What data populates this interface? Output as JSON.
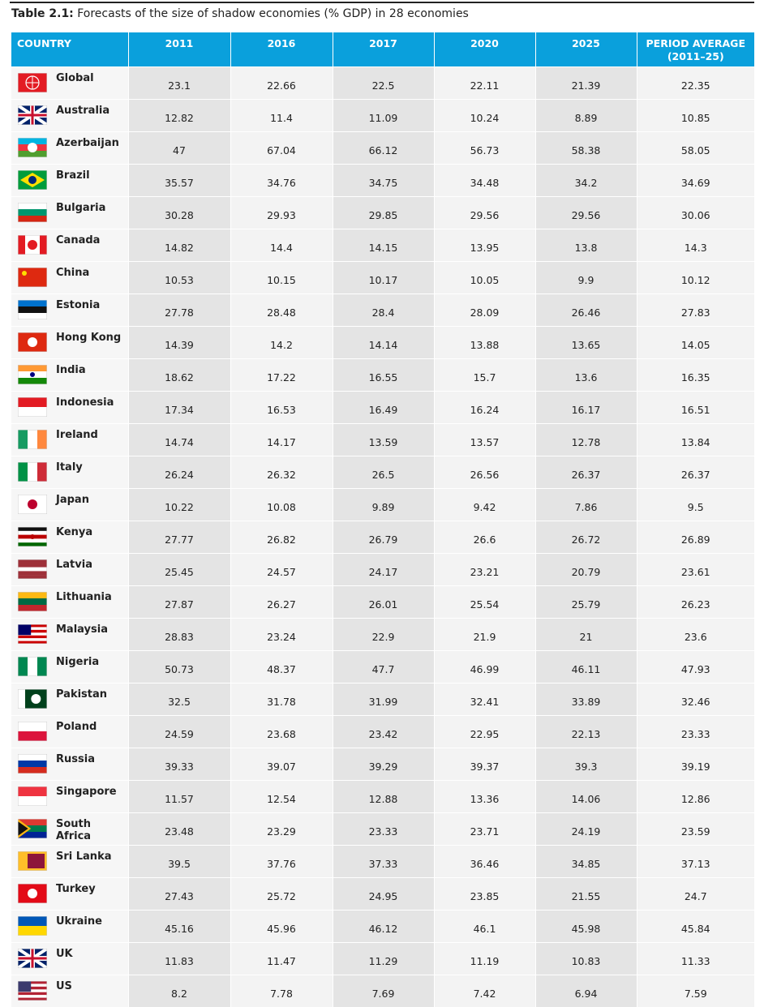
{
  "title": {
    "label": "Table 2.1:",
    "text": "Forecasts of the size of shadow economies (% GDP) in 28 economies"
  },
  "table": {
    "columns": [
      "COUNTRY",
      "2011",
      "2016",
      "2017",
      "2020",
      "2025",
      "PERIOD AVERAGE (2011–25)"
    ],
    "rows": [
      [
        "Global",
        23.1,
        22.66,
        22.5,
        22.11,
        21.39,
        22.35
      ],
      [
        "Australia",
        12.82,
        11.4,
        11.09,
        10.24,
        8.89,
        10.85
      ],
      [
        "Azerbaijan",
        47,
        67.04,
        66.12,
        56.73,
        58.38,
        58.05
      ],
      [
        "Brazil",
        35.57,
        34.76,
        34.75,
        34.48,
        34.2,
        34.69
      ],
      [
        "Bulgaria",
        30.28,
        29.93,
        29.85,
        29.56,
        29.56,
        30.06
      ],
      [
        "Canada",
        14.82,
        14.4,
        14.15,
        13.95,
        13.8,
        14.3
      ],
      [
        "China",
        10.53,
        10.15,
        10.17,
        10.05,
        9.9,
        10.12
      ],
      [
        "Estonia",
        27.78,
        28.48,
        28.4,
        28.09,
        26.46,
        27.83
      ],
      [
        "Hong Kong",
        14.39,
        14.2,
        14.14,
        13.88,
        13.65,
        14.05
      ],
      [
        "India",
        18.62,
        17.22,
        16.55,
        15.7,
        13.6,
        16.35
      ],
      [
        "Indonesia",
        17.34,
        16.53,
        16.49,
        16.24,
        16.17,
        16.51
      ],
      [
        "Ireland",
        14.74,
        14.17,
        13.59,
        13.57,
        12.78,
        13.84
      ],
      [
        "Italy",
        26.24,
        26.32,
        26.5,
        26.56,
        26.37,
        26.37
      ],
      [
        "Japan",
        10.22,
        10.08,
        9.89,
        9.42,
        7.86,
        9.5
      ],
      [
        "Kenya",
        27.77,
        26.82,
        26.79,
        26.6,
        26.72,
        26.89
      ],
      [
        "Latvia",
        25.45,
        24.57,
        24.17,
        23.21,
        20.79,
        23.61
      ],
      [
        "Lithuania",
        27.87,
        26.27,
        26.01,
        25.54,
        25.79,
        26.23
      ],
      [
        "Malaysia",
        28.83,
        23.24,
        22.9,
        21.9,
        21,
        23.6
      ],
      [
        "Nigeria",
        50.73,
        48.37,
        47.7,
        46.99,
        46.11,
        47.93
      ],
      [
        "Pakistan",
        32.5,
        31.78,
        31.99,
        32.41,
        33.89,
        32.46
      ],
      [
        "Poland",
        24.59,
        23.68,
        23.42,
        22.95,
        22.13,
        23.33
      ],
      [
        "Russia",
        39.33,
        39.07,
        39.29,
        39.37,
        39.3,
        39.19
      ],
      [
        "Singapore",
        11.57,
        12.54,
        12.88,
        13.36,
        14.06,
        12.86
      ],
      [
        "South Africa",
        23.48,
        23.29,
        23.33,
        23.71,
        24.19,
        23.59
      ],
      [
        "Sri Lanka",
        39.5,
        37.76,
        37.33,
        36.46,
        34.85,
        37.13
      ],
      [
        "Turkey",
        27.43,
        25.72,
        24.95,
        23.85,
        21.55,
        24.7
      ],
      [
        "Ukraine",
        45.16,
        45.96,
        46.12,
        46.1,
        45.98,
        45.84
      ],
      [
        "UK",
        11.83,
        11.47,
        11.29,
        11.19,
        10.83,
        11.33
      ],
      [
        "US",
        8.2,
        7.78,
        7.69,
        7.42,
        6.94,
        7.59
      ]
    ]
  }
}
